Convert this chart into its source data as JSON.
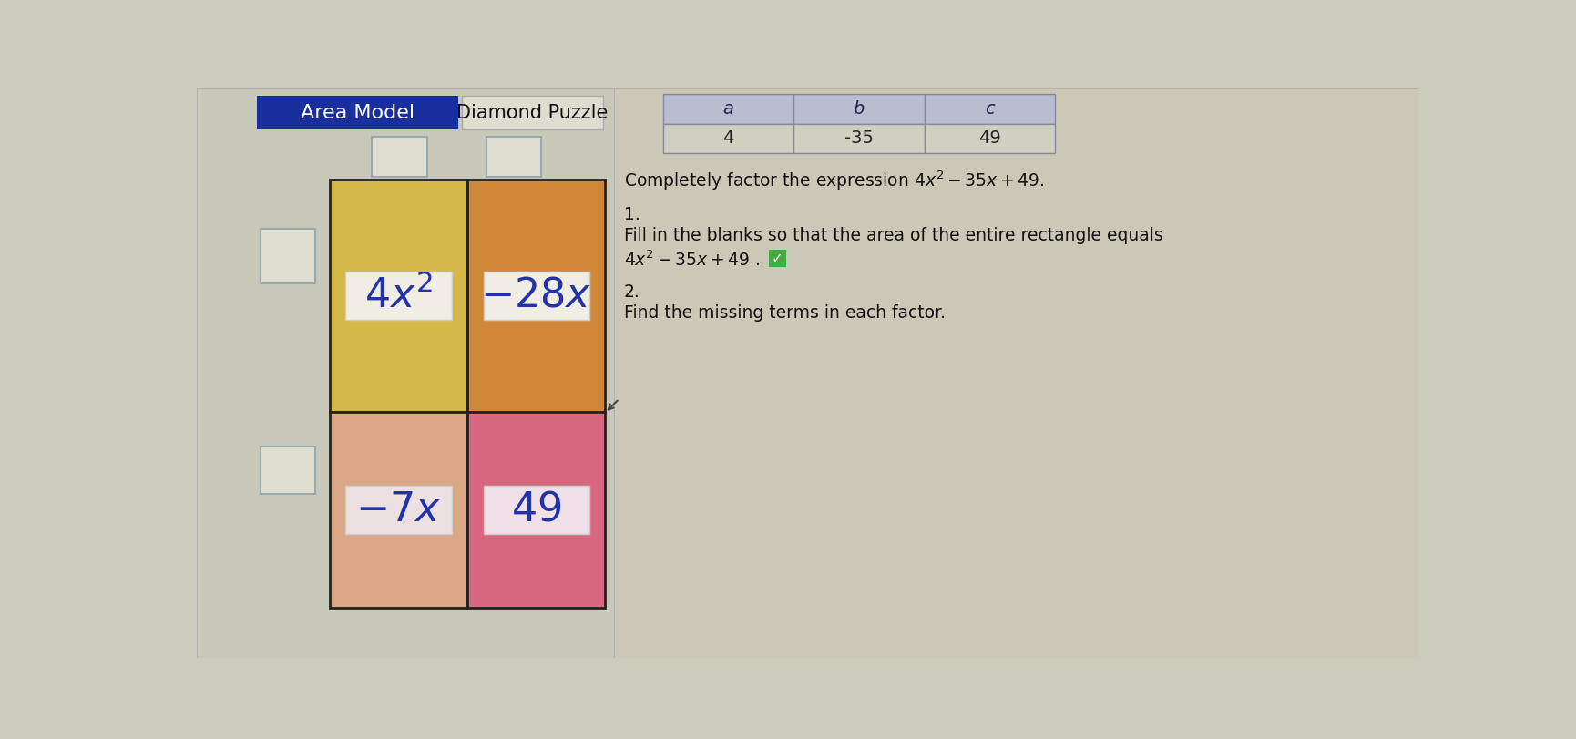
{
  "bg_color": "#ccccbc",
  "left_panel_bg": "#c8c8b8",
  "title_left": "Area Model",
  "title_right": "Diamond Puzzle",
  "title_bg": "#1a2f9e",
  "title_text_color": "white",
  "title_right_bg": "#ddddd0",
  "table_headers": [
    "a",
    "b",
    "c"
  ],
  "table_values": [
    "4",
    "-35",
    "49"
  ],
  "table_header_bg": "#b8bdd0",
  "table_value_bg": "#d0d0c0",
  "table_border": "#888899",
  "color_top_left": "#d4b84a",
  "color_top_right": "#d08838",
  "color_bottom_left": "#dba888",
  "color_bottom_right": "#d86880",
  "grid_border": "#222222",
  "label_bg_tl": "#f0ede5",
  "label_bg_tr": "#f0ede5",
  "label_bg_bl": "#ede0e0",
  "label_bg_br": "#f0e0e8",
  "label_border": "#cccccc",
  "text_color": "#2233aa",
  "blank_box_bg": "#ddddd0",
  "blank_box_border": "#99aaaa",
  "check_color": "#44aa44",
  "right_panel_bg": "#ccc8b8",
  "text_dark": "#111111"
}
